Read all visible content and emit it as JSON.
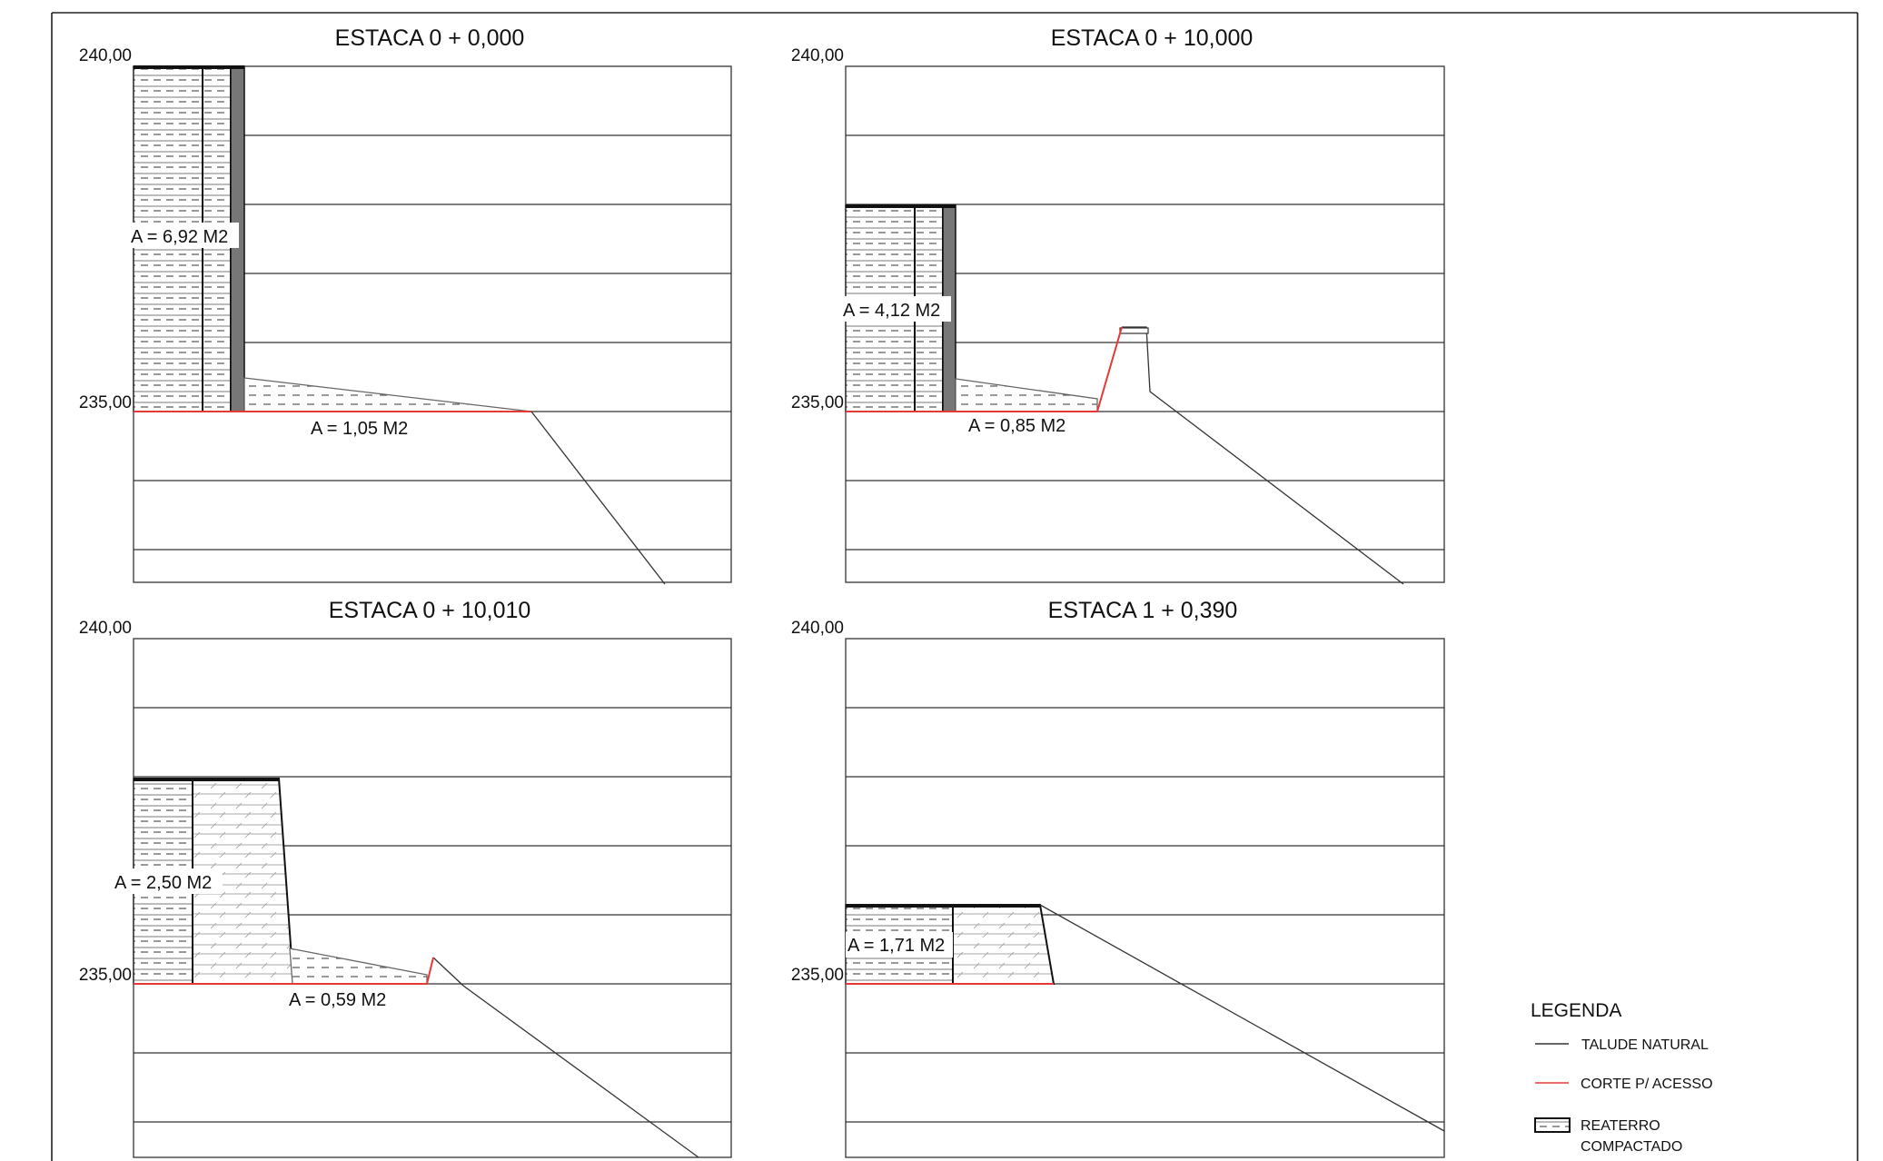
{
  "sections": [
    {
      "title": "ESTACA 0 + 0,000",
      "level_top": "240,00",
      "level_bottom": "235,00",
      "area_wall": "A = 6,92 M2",
      "area_backfill": "A = 1,05 M2"
    },
    {
      "title": "ESTACA 0 + 10,000",
      "level_top": "240,00",
      "level_bottom": "235,00",
      "area_wall": "A = 4,12 M2",
      "area_backfill": "A = 0,85 M2"
    },
    {
      "title": "ESTACA 0 + 10,010",
      "level_top": "240,00",
      "level_bottom": "235,00",
      "area_wall": "A = 2,50 M2",
      "area_backfill": "A = 0,59 M2"
    },
    {
      "title": "ESTACA 1 + 0,390",
      "level_top": "240,00",
      "level_bottom": "235,00",
      "area_wall": "A = 1,71 M2"
    }
  ],
  "legend": {
    "title": "LEGENDA",
    "items": [
      {
        "label": "TALUDE NATURAL",
        "color": "#333333"
      },
      {
        "label": "CORTE P/ ACESSO",
        "color": "#e53935"
      },
      {
        "label_line1": "REATERRO",
        "label_line2": "COMPACTADO"
      }
    ]
  }
}
